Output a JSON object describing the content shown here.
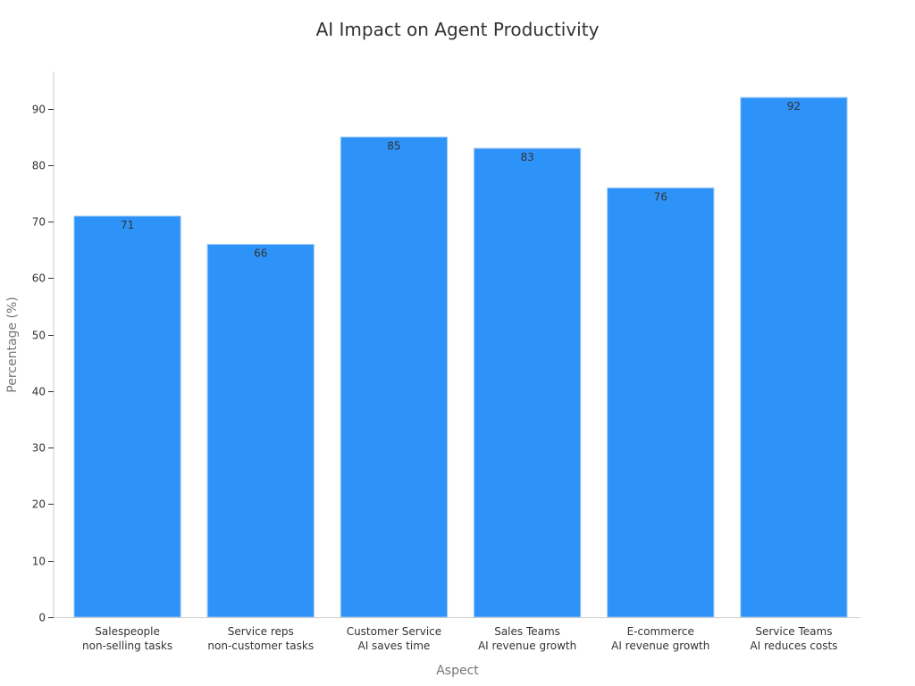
{
  "chart_data": {
    "type": "bar",
    "title": "AI Impact on Agent Productivity",
    "xlabel": "Aspect",
    "ylabel": "Percentage (%)",
    "categories": [
      [
        "Salespeople",
        "non-selling tasks"
      ],
      [
        "Service reps",
        "non-customer tasks"
      ],
      [
        "Customer Service",
        "AI saves time"
      ],
      [
        "Sales Teams",
        "AI revenue growth"
      ],
      [
        "E-commerce",
        "AI revenue growth"
      ],
      [
        "Service Teams",
        "AI reduces costs"
      ]
    ],
    "values": [
      71,
      66,
      85,
      83,
      76,
      92
    ],
    "ylim": [
      0,
      96.6
    ],
    "yticks": [
      0,
      10,
      20,
      30,
      40,
      50,
      60,
      70,
      80,
      90
    ],
    "grid": false,
    "legend": "none",
    "bar_color": "#2e93f8"
  }
}
